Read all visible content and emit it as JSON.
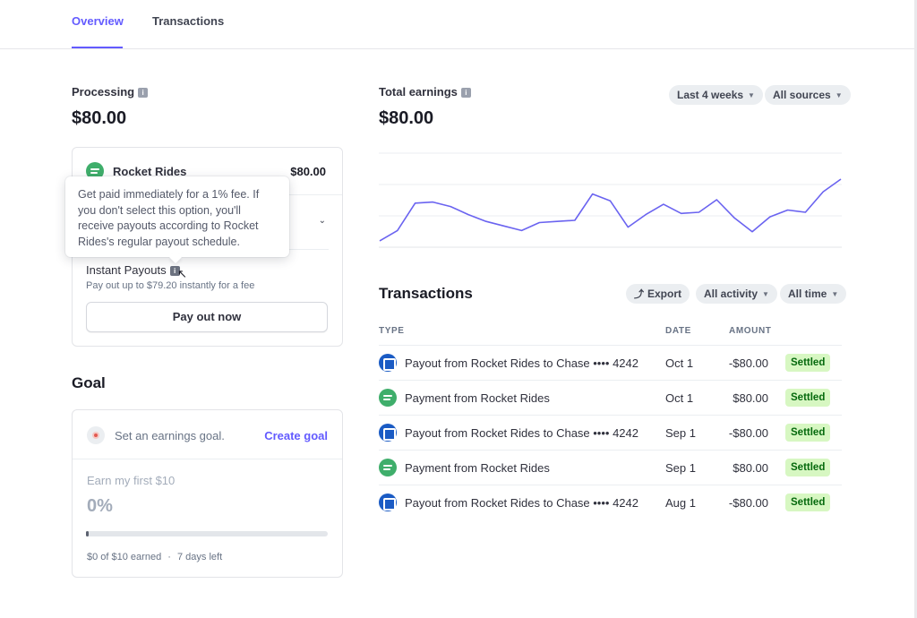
{
  "tabs": [
    {
      "label": "Overview",
      "active": true
    },
    {
      "label": "Transactions",
      "active": false
    }
  ],
  "processing": {
    "label": "Processing",
    "amount": "$80.00",
    "source_name": "Rocket Rides",
    "source_amount": "$80.00",
    "tooltip": "Get paid immediately for a 1% fee. If you don't select this option, you'll receive payouts according to Rocket Rides's regular payout schedule.",
    "instant_label": "Instant Payouts",
    "instant_desc": "Pay out up to $79.20 instantly for a fee",
    "payout_button": "Pay out now"
  },
  "goal": {
    "title": "Goal",
    "prompt": "Set an earnings goal.",
    "create_link": "Create goal",
    "target_label": "Earn my first $10",
    "percent": "0%",
    "progress_fraction": 0,
    "earned_text": "$0 of $10 earned",
    "dot": "·",
    "days_left": "7 days left"
  },
  "earnings": {
    "label": "Total earnings",
    "amount": "$80.00",
    "range_filter": "Last 4 weeks",
    "source_filter": "All sources",
    "chart_data": {
      "type": "line",
      "title": "Total earnings",
      "series": [
        {
          "name": "Earnings",
          "values": [
            4,
            13,
            37,
            38,
            34,
            27,
            21,
            17,
            13,
            20,
            21,
            22,
            45,
            39,
            16,
            27,
            36,
            28,
            29,
            40,
            24,
            12,
            25,
            31,
            29,
            47,
            58
          ]
        }
      ],
      "ylim": [
        0,
        80
      ],
      "grid": true,
      "xlabel": "",
      "ylabel": ""
    }
  },
  "transactions": {
    "title": "Transactions",
    "export_label": "Export",
    "activity_filter": "All activity",
    "time_filter": "All time",
    "columns": {
      "type": "TYPE",
      "date": "DATE",
      "amount": "AMOUNT"
    },
    "rows": [
      {
        "icon": "chase-bank-icon",
        "type": "Payout from Rocket Rides to Chase •••• 4242",
        "date": "Oct 1",
        "amount": "-$80.00",
        "status": "Settled"
      },
      {
        "icon": "rocket-rides-icon",
        "type": "Payment from Rocket Rides",
        "date": "Oct 1",
        "amount": "$80.00",
        "status": "Settled"
      },
      {
        "icon": "chase-bank-icon",
        "type": "Payout from Rocket Rides to Chase •••• 4242",
        "date": "Sep 1",
        "amount": "-$80.00",
        "status": "Settled"
      },
      {
        "icon": "rocket-rides-icon",
        "type": "Payment from Rocket Rides",
        "date": "Sep 1",
        "amount": "$80.00",
        "status": "Settled"
      },
      {
        "icon": "chase-bank-icon",
        "type": "Payout from Rocket Rides to Chase •••• 4242",
        "date": "Aug 1",
        "amount": "-$80.00",
        "status": "Settled"
      }
    ]
  },
  "colors": {
    "accent": "#635bff",
    "line": "#6a63f0",
    "settled_bg": "#d7f7c2",
    "settled_text": "#05690d"
  }
}
